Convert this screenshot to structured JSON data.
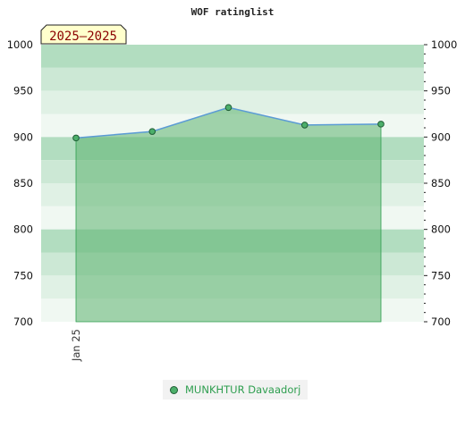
{
  "chart_data": {
    "type": "area",
    "title": "WOF ratinglist",
    "period_badge": "2025–2025",
    "x": [
      0,
      1,
      2,
      3,
      4
    ],
    "x_tick_labels": [
      {
        "x": 0,
        "label": "Jan 25"
      }
    ],
    "series": [
      {
        "name": "MUNKHTUR Davaadorj",
        "values": [
          899,
          906,
          932,
          913,
          914
        ]
      }
    ],
    "ylim": [
      700,
      1000
    ],
    "y_ticks": [
      700,
      750,
      800,
      850,
      900,
      950,
      1000
    ],
    "y_tick_labels": [
      "700",
      "750",
      "800",
      "850",
      "900",
      "950",
      "1000"
    ],
    "legend_position": "bottom",
    "colors": {
      "series_marker": "#4caf6a",
      "series_line": "#5b9bd5",
      "area_fill": "#5cb270",
      "band_dark": "#b2ddc0",
      "band_mid": "#cce8d5",
      "band_light": "#e0f1e5",
      "band_lightest": "#f0f8f2",
      "legend_text": "#2e9e4f",
      "badge_bg": "#ffffcc"
    }
  }
}
